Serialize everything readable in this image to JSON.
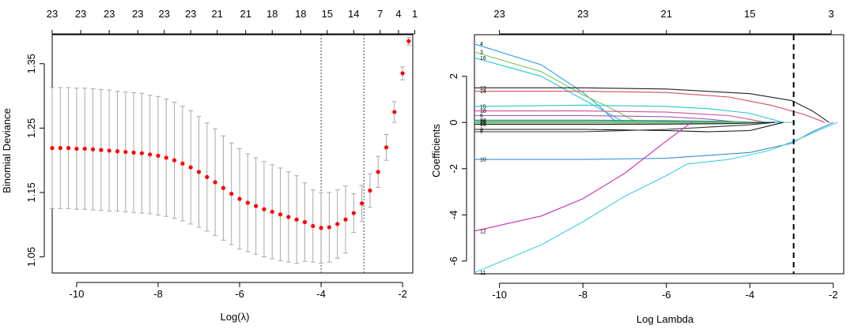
{
  "chart_data": [
    {
      "type": "scatter",
      "subtype": "cross-validation curve with error bars",
      "xlabel": "Log(λ)",
      "ylabel": "Binomial Deviance",
      "xlim": [
        -10.6,
        -1.75
      ],
      "ylim": [
        1.025,
        1.395
      ],
      "xticks": [
        -10,
        -8,
        -6,
        -4,
        -2
      ],
      "yticks": [
        1.05,
        1.15,
        1.25,
        1.35
      ],
      "grid": false,
      "point_color": "#ff0000",
      "errorbar_color": "#a8a8a8",
      "reference_lines_x": [
        -4.0,
        -2.95
      ],
      "top_axis": {
        "positions": [
          -10.6,
          -9.9,
          -9.2,
          -8.5,
          -7.85,
          -7.2,
          -6.55,
          -5.85,
          -5.2,
          -4.5,
          -3.85,
          -3.2,
          -2.55,
          -2.1,
          -1.7
        ],
        "labels": [
          "23",
          "23",
          "23",
          "23",
          "23",
          "23",
          "21",
          "21",
          "18",
          "18",
          "15",
          "14",
          "7",
          "4",
          "1"
        ]
      },
      "series": [
        {
          "x": [
            -10.6,
            -10.4,
            -10.2,
            -10.0,
            -9.8,
            -9.6,
            -9.4,
            -9.2,
            -9.0,
            -8.8,
            -8.6,
            -8.4,
            -8.2,
            -8.0,
            -7.8,
            -7.6,
            -7.4,
            -7.2,
            -7.0,
            -6.8,
            -6.6,
            -6.4,
            -6.2,
            -6.0,
            -5.8,
            -5.6,
            -5.4,
            -5.2,
            -5.0,
            -4.8,
            -4.6,
            -4.4,
            -4.2,
            -4.0,
            -3.8,
            -3.6,
            -3.4,
            -3.2,
            -3.0,
            -2.8,
            -2.6,
            -2.4,
            -2.2,
            -2.0,
            -1.85
          ],
          "y": [
            1.219,
            1.219,
            1.219,
            1.218,
            1.218,
            1.217,
            1.216,
            1.215,
            1.214,
            1.213,
            1.212,
            1.211,
            1.209,
            1.207,
            1.204,
            1.2,
            1.195,
            1.189,
            1.182,
            1.174,
            1.166,
            1.157,
            1.148,
            1.14,
            1.134,
            1.129,
            1.124,
            1.12,
            1.116,
            1.112,
            1.108,
            1.104,
            1.098,
            1.095,
            1.096,
            1.101,
            1.108,
            1.118,
            1.133,
            1.153,
            1.182,
            1.22,
            1.275,
            1.335,
            1.385
          ],
          "err": [
            0.094,
            0.094,
            0.094,
            0.094,
            0.094,
            0.094,
            0.094,
            0.094,
            0.093,
            0.093,
            0.093,
            0.093,
            0.092,
            0.092,
            0.091,
            0.09,
            0.089,
            0.088,
            0.086,
            0.084,
            0.083,
            0.081,
            0.079,
            0.078,
            0.076,
            0.075,
            0.074,
            0.073,
            0.072,
            0.07,
            0.068,
            0.061,
            0.056,
            0.055,
            0.054,
            0.053,
            0.052,
            0.03,
            0.028,
            0.026,
            0.024,
            0.02,
            0.016,
            0.01,
            0.006
          ]
        }
      ]
    },
    {
      "type": "line",
      "subtype": "coefficient path",
      "xlabel": "Log Lambda",
      "ylabel": "Coefficients",
      "xlim": [
        -10.6,
        -1.75
      ],
      "ylim": [
        -6.55,
        3.8
      ],
      "xticks": [
        -10,
        -8,
        -6,
        -4,
        -2
      ],
      "yticks": [
        -6,
        -4,
        -2,
        0,
        2
      ],
      "grid": false,
      "reference_lines_x": [
        -2.95
      ],
      "top_axis": {
        "positions": [
          -10.0,
          -8.0,
          -6.0,
          -4.0,
          -2.05
        ],
        "labels": [
          "23",
          "23",
          "21",
          "15",
          "3"
        ]
      },
      "series": [
        {
          "label": "4",
          "color": "#28a0e0",
          "x": [
            -10.6,
            -9.0,
            -8.0,
            -7.6,
            -7.2
          ],
          "y": [
            3.4,
            2.5,
            1.3,
            0.7,
            0.0
          ]
        },
        {
          "label": "3",
          "color": "#7ac85a",
          "x": [
            -10.6,
            -9.0,
            -8.0,
            -7.2,
            -6.7
          ],
          "y": [
            3.05,
            2.2,
            1.2,
            0.5,
            0.0
          ]
        },
        {
          "label": "16",
          "color": "#28c8d0",
          "x": [
            -10.6,
            -9.0,
            -8.0,
            -7.4,
            -7.0
          ],
          "y": [
            2.8,
            2.0,
            1.0,
            0.4,
            0.0
          ]
        },
        {
          "label": "13",
          "color": "#222222",
          "x": [
            -10.6,
            -8.0,
            -6.0,
            -4.0,
            -3.0,
            -2.5,
            -2.1
          ],
          "y": [
            1.5,
            1.5,
            1.45,
            1.25,
            0.95,
            0.5,
            0.0
          ]
        },
        {
          "label": "14",
          "color": "#d05060",
          "x": [
            -10.6,
            -8.0,
            -6.0,
            -4.5,
            -3.5,
            -2.7,
            -2.2
          ],
          "y": [
            1.35,
            1.35,
            1.3,
            1.1,
            0.75,
            0.35,
            0.0
          ]
        },
        {
          "label": "15",
          "color": "#28c8d0",
          "x": [
            -10.6,
            -8.0,
            -6.0,
            -5.0,
            -4.0,
            -3.2
          ],
          "y": [
            0.7,
            0.75,
            0.7,
            0.6,
            0.4,
            0.0
          ]
        },
        {
          "label": "18",
          "color": "#d05090",
          "x": [
            -10.6,
            -8.0,
            -6.0,
            -4.5,
            -3.6
          ],
          "y": [
            0.5,
            0.5,
            0.45,
            0.3,
            0.0
          ]
        },
        {
          "label": "6",
          "color": "#9a5ac8",
          "x": [
            -10.6,
            -8.0,
            -6.0,
            -5.0,
            -4.2
          ],
          "y": [
            0.3,
            0.3,
            0.25,
            0.15,
            0.0
          ]
        },
        {
          "label": "22",
          "color": "#2a8a3a",
          "x": [
            -10.6,
            -8.0,
            -6.0,
            -4.5,
            -3.6
          ],
          "y": [
            0.1,
            0.1,
            0.08,
            0.05,
            0.0
          ]
        },
        {
          "label": "21",
          "color": "#6acaa0",
          "x": [
            -10.6,
            -8.0,
            -6.0,
            -4.0,
            -2.9
          ],
          "y": [
            0.05,
            0.05,
            0.04,
            0.03,
            0.0
          ]
        },
        {
          "label": "20",
          "color": "#3aa0d0",
          "x": [
            -10.6,
            -8.0,
            -6.0,
            -4.0,
            -3.2
          ],
          "y": [
            0.02,
            0.02,
            0.02,
            0.01,
            0.0
          ]
        },
        {
          "label": "23",
          "color": "#90c040",
          "x": [
            -10.6,
            -8.0,
            -6.0,
            -4.5,
            -3.8
          ],
          "y": [
            -0.03,
            -0.03,
            -0.03,
            -0.02,
            0.0
          ]
        },
        {
          "label": "19",
          "color": "#1a1a1a",
          "x": [
            -10.6,
            -8.0,
            -6.0,
            -4.5,
            -3.4
          ],
          "y": [
            -0.08,
            -0.08,
            -0.07,
            -0.05,
            0.0
          ]
        },
        {
          "label": "2",
          "color": "#111111",
          "x": [
            -10.6,
            -8.0,
            -6.0,
            -5.0,
            -4.0,
            -3.2
          ],
          "y": [
            -0.3,
            -0.3,
            -0.35,
            -0.4,
            -0.35,
            0.0
          ]
        },
        {
          "label": "7",
          "color": "#333333",
          "x": [
            -10.6,
            -8.0,
            -6.0,
            -5.0,
            -4.0,
            -3.4
          ],
          "y": [
            -0.4,
            -0.4,
            -0.3,
            -0.2,
            -0.1,
            0.0
          ]
        },
        {
          "label": "10",
          "color": "#3a8ad8",
          "x": [
            -10.6,
            -8.0,
            -6.0,
            -4.0,
            -3.0,
            -2.5,
            -2.0
          ],
          "y": [
            -1.6,
            -1.6,
            -1.55,
            -1.3,
            -0.9,
            -0.4,
            0.0
          ]
        },
        {
          "label": "12",
          "color": "#c82ab8",
          "x": [
            -10.6,
            -9.0,
            -8.0,
            -7.0,
            -6.0,
            -5.4
          ],
          "y": [
            -4.7,
            -4.05,
            -3.3,
            -2.2,
            -0.8,
            0.0
          ]
        },
        {
          "label": "11",
          "color": "#40d0e0",
          "x": [
            -10.6,
            -9.0,
            -8.0,
            -7.0,
            -6.0,
            -5.5,
            -4.5,
            -3.5,
            -2.8,
            -2.3,
            -1.9
          ],
          "y": [
            -6.5,
            -5.3,
            -4.3,
            -3.2,
            -2.3,
            -1.8,
            -1.6,
            -1.2,
            -0.7,
            -0.3,
            0.0
          ]
        }
      ]
    }
  ]
}
